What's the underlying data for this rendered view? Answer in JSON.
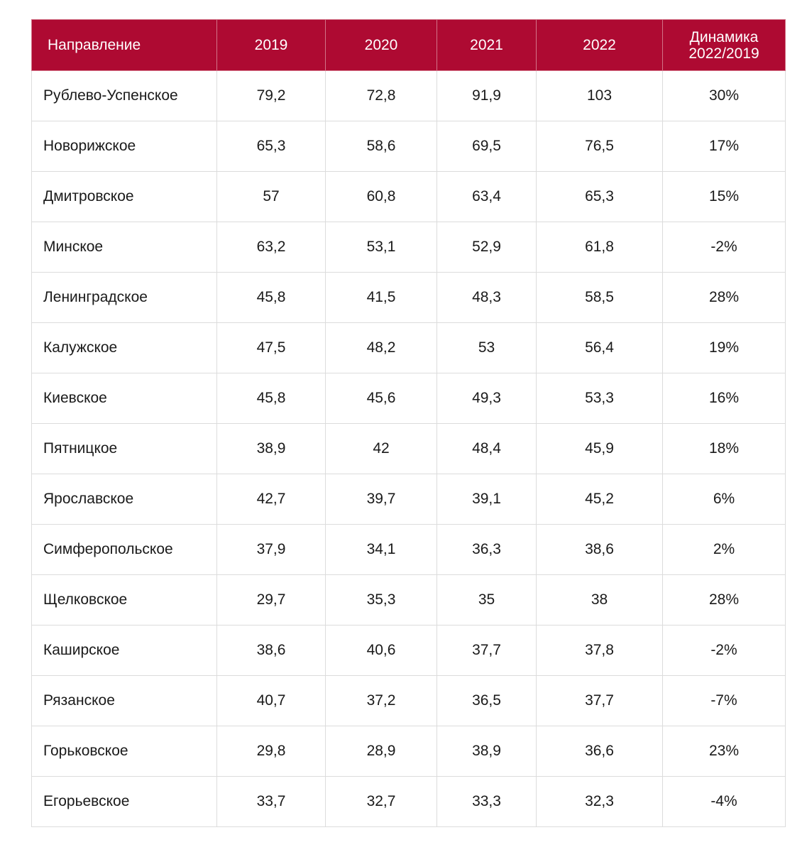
{
  "chart_data": {
    "type": "table",
    "columns": [
      "Направление",
      "2019",
      "2020",
      "2021",
      "2022",
      "Динамика 2022/2019"
    ],
    "rows": [
      {
        "name": "Рублево-Успенское",
        "values": [
          "79,2",
          "72,8",
          "91,9",
          "103",
          "30%"
        ]
      },
      {
        "name": "Новорижское",
        "values": [
          "65,3",
          "58,6",
          "69,5",
          "76,5",
          "17%"
        ]
      },
      {
        "name": "Дмитровское",
        "values": [
          "57",
          "60,8",
          "63,4",
          "65,3",
          "15%"
        ]
      },
      {
        "name": "Минское",
        "values": [
          "63,2",
          "53,1",
          "52,9",
          "61,8",
          "-2%"
        ]
      },
      {
        "name": "Ленинградское",
        "values": [
          "45,8",
          "41,5",
          "48,3",
          "58,5",
          "28%"
        ]
      },
      {
        "name": "Калужское",
        "values": [
          "47,5",
          "48,2",
          "53",
          "56,4",
          "19%"
        ]
      },
      {
        "name": "Киевское",
        "values": [
          "45,8",
          "45,6",
          "49,3",
          "53,3",
          "16%"
        ]
      },
      {
        "name": "Пятницкое",
        "values": [
          "38,9",
          "42",
          "48,4",
          "45,9",
          "18%"
        ]
      },
      {
        "name": "Ярославское",
        "values": [
          "42,7",
          "39,7",
          "39,1",
          "45,2",
          "6%"
        ]
      },
      {
        "name": "Симферопольское",
        "values": [
          "37,9",
          "34,1",
          "36,3",
          "38,6",
          "2%"
        ]
      },
      {
        "name": "Щелковское",
        "values": [
          "29,7",
          "35,3",
          "35",
          "38",
          "28%"
        ]
      },
      {
        "name": "Каширское",
        "values": [
          "38,6",
          "40,6",
          "37,7",
          "37,8",
          "-2%"
        ]
      },
      {
        "name": "Рязанское",
        "values": [
          "40,7",
          "37,2",
          "36,5",
          "37,7",
          "-7%"
        ]
      },
      {
        "name": "Горьковское",
        "values": [
          "29,8",
          "28,9",
          "38,9",
          "36,6",
          "23%"
        ]
      },
      {
        "name": "Егорьевское",
        "values": [
          "33,7",
          "32,7",
          "33,3",
          "32,3",
          "-4%"
        ]
      }
    ]
  },
  "colors": {
    "header_background": "#ae0a32",
    "header_text": "#ffffff",
    "grid_lines": "#dcdcdc"
  }
}
